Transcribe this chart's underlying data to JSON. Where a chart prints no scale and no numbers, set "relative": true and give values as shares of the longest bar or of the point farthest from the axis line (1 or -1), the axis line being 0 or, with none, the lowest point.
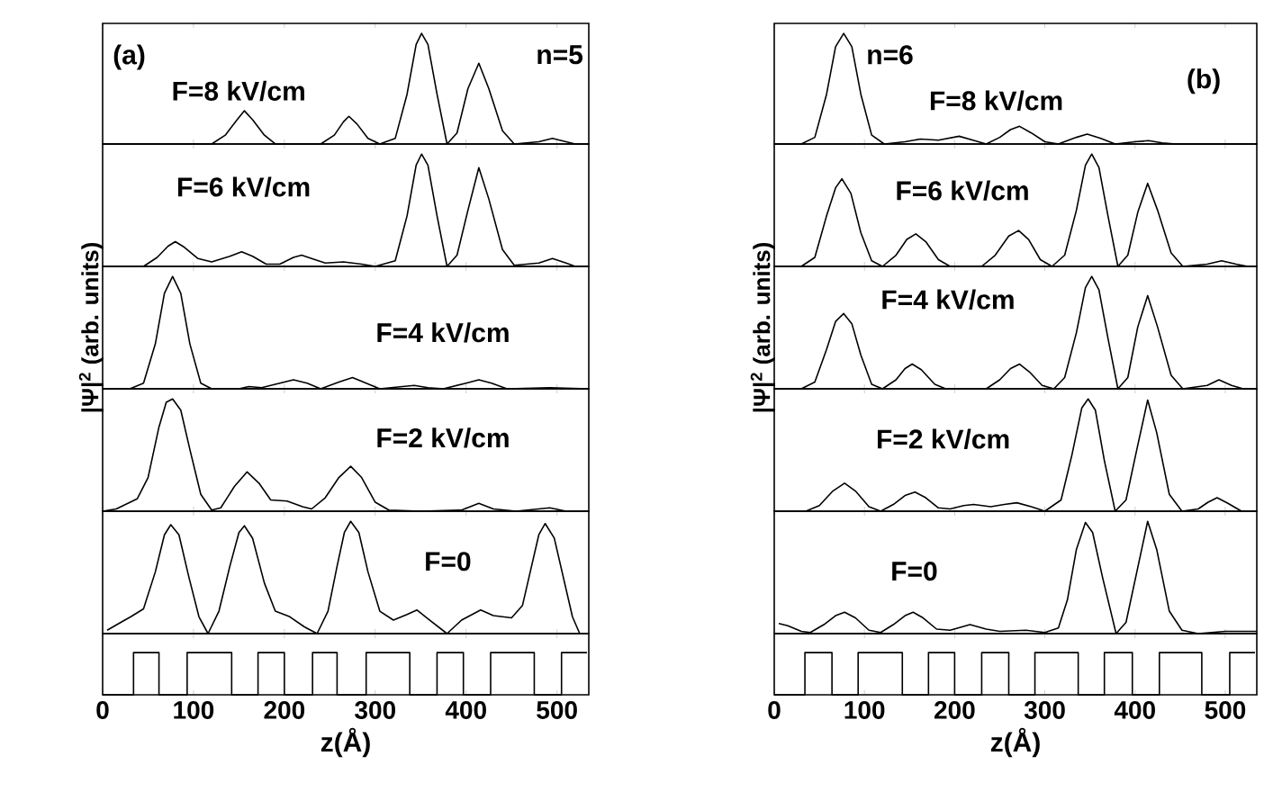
{
  "chart_data": [
    {
      "type": "line",
      "relative": true,
      "xlim": [
        0,
        535
      ],
      "xticks": [
        0,
        100,
        200,
        300,
        400,
        500
      ],
      "tick_labels": false,
      "annotations": [
        "(a)",
        "F=8 kV/cm",
        "n=5"
      ],
      "x": [
        0,
        120,
        135,
        148,
        156,
        165,
        178,
        190,
        240,
        255,
        265,
        271,
        280,
        292,
        305,
        322,
        335,
        345,
        351,
        358,
        368,
        379,
        390,
        402,
        414,
        425,
        440,
        453,
        480,
        495,
        510,
        520,
        535
      ],
      "series": [
        {
          "color": "#000000",
          "values": [
            0,
            0,
            0.08,
            0.22,
            0.3,
            0.22,
            0.08,
            0,
            0,
            0.08,
            0.2,
            0.25,
            0.18,
            0.05,
            0,
            0.05,
            0.45,
            0.9,
            1,
            0.9,
            0.45,
            0,
            0.1,
            0.5,
            0.73,
            0.5,
            0.12,
            0,
            0.02,
            0.05,
            0.02,
            0,
            0
          ]
        }
      ]
    },
    {
      "type": "line",
      "relative": true,
      "xlim": [
        0,
        535
      ],
      "xticks": [
        0,
        100,
        200,
        300,
        400,
        500
      ],
      "tick_labels": false,
      "annotations": [
        "F=6 kV/cm"
      ],
      "x": [
        0,
        45,
        60,
        72,
        80,
        90,
        105,
        120,
        140,
        153,
        165,
        180,
        195,
        210,
        219,
        230,
        245,
        265,
        285,
        300,
        322,
        335,
        345,
        351,
        358,
        368,
        379,
        390,
        402,
        414,
        425,
        440,
        453,
        480,
        495,
        510,
        520,
        535
      ],
      "series": [
        {
          "color": "#000000",
          "values": [
            0,
            0,
            0.08,
            0.18,
            0.22,
            0.17,
            0.07,
            0.04,
            0.09,
            0.13,
            0.09,
            0.02,
            0.02,
            0.08,
            0.1,
            0.07,
            0.03,
            0.04,
            0.02,
            0,
            0.05,
            0.45,
            0.9,
            1,
            0.9,
            0.45,
            0,
            0.1,
            0.5,
            0.88,
            0.6,
            0.15,
            0.01,
            0.03,
            0.07,
            0.03,
            0,
            0
          ]
        }
      ]
    },
    {
      "type": "line",
      "relative": true,
      "xlim": [
        0,
        535
      ],
      "xticks": [
        0,
        100,
        200,
        300,
        400,
        500
      ],
      "tick_labels": false,
      "annotations": [
        "F=4 kV/cm"
      ],
      "ylabel": "|Ψ|$^{2}$ (arb. units)",
      "x": [
        0,
        30,
        45,
        58,
        68,
        77,
        86,
        96,
        108,
        120,
        150,
        161,
        175,
        195,
        210,
        225,
        240,
        260,
        275,
        290,
        305,
        330,
        343,
        358,
        375,
        400,
        414,
        428,
        445,
        492,
        535
      ],
      "series": [
        {
          "color": "#000000",
          "values": [
            0,
            0,
            0.05,
            0.4,
            0.85,
            1,
            0.85,
            0.4,
            0.05,
            0,
            0,
            0.02,
            0.01,
            0.05,
            0.08,
            0.05,
            0,
            0.06,
            0.1,
            0.05,
            0,
            0.02,
            0.03,
            0.01,
            0,
            0.05,
            0.08,
            0.05,
            0,
            0.01,
            0
          ]
        }
      ]
    },
    {
      "type": "line",
      "relative": true,
      "xlim": [
        0,
        535
      ],
      "xticks": [
        0,
        100,
        200,
        300,
        400,
        500
      ],
      "tick_labels": false,
      "annotations": [
        "F=2 kV/cm"
      ],
      "x": [
        0,
        15,
        38,
        50,
        62,
        70,
        77,
        86,
        96,
        108,
        120,
        130,
        145,
        159,
        172,
        185,
        203,
        220,
        230,
        245,
        260,
        273,
        285,
        300,
        315,
        350,
        395,
        414,
        430,
        455,
        492,
        510,
        535
      ],
      "series": [
        {
          "color": "#000000",
          "values": [
            0,
            0.02,
            0.11,
            0.3,
            0.75,
            0.97,
            1,
            0.9,
            0.55,
            0.15,
            0.01,
            0.03,
            0.22,
            0.35,
            0.25,
            0.1,
            0.09,
            0.04,
            0.02,
            0.12,
            0.3,
            0.4,
            0.3,
            0.08,
            0.01,
            0,
            0.01,
            0.07,
            0.02,
            0,
            0.03,
            0,
            0
          ]
        }
      ]
    },
    {
      "type": "line",
      "relative": true,
      "xlim": [
        0,
        535
      ],
      "xticks": [
        0,
        100,
        200,
        300,
        400,
        500
      ],
      "tick_labels": false,
      "annotations": [
        "F=0"
      ],
      "x": [
        5,
        20,
        31,
        45,
        58,
        68,
        75,
        84,
        95,
        106,
        116,
        128,
        140,
        150,
        156,
        165,
        178,
        190,
        206,
        222,
        236,
        248,
        258,
        266,
        273,
        282,
        292,
        305,
        320,
        335,
        346,
        360,
        379,
        395,
        416,
        430,
        450,
        462,
        472,
        480,
        487,
        497,
        507,
        517,
        525
      ],
      "series": [
        {
          "color": "#000000",
          "values": [
            0.03,
            0.1,
            0.15,
            0.22,
            0.55,
            0.88,
            0.97,
            0.88,
            0.5,
            0.15,
            0,
            0.2,
            0.6,
            0.9,
            0.96,
            0.85,
            0.45,
            0.2,
            0.15,
            0.06,
            0,
            0.2,
            0.6,
            0.9,
            1,
            0.9,
            0.55,
            0.2,
            0.12,
            0.17,
            0.21,
            0.12,
            0,
            0.12,
            0.21,
            0.16,
            0.14,
            0.25,
            0.6,
            0.88,
            0.98,
            0.85,
            0.5,
            0.15,
            0
          ]
        }
      ]
    },
    {
      "type": "line",
      "relative": true,
      "xlim": [
        0,
        535
      ],
      "xticks": [
        0,
        100,
        200,
        300,
        400,
        500
      ],
      "tick_labels": "x",
      "xlabel": "z(Å)",
      "x": [
        0,
        34,
        34,
        62,
        62,
        93,
        93,
        142,
        142,
        171,
        171,
        200,
        200,
        231,
        231,
        258,
        258,
        290,
        290,
        338,
        338,
        368,
        368,
        397,
        397,
        427,
        427,
        475,
        475,
        505,
        505,
        533
      ],
      "series": [
        {
          "color": "#000000",
          "values": [
            0,
            0,
            1,
            1,
            0,
            0,
            1,
            1,
            0,
            0,
            1,
            1,
            0,
            0,
            1,
            1,
            0,
            0,
            1,
            1,
            0,
            0,
            1,
            1,
            0,
            0,
            1,
            1,
            0,
            0,
            1,
            1
          ]
        }
      ]
    },
    {
      "type": "line",
      "relative": true,
      "xlim": [
        0,
        535
      ],
      "xticks": [
        0,
        100,
        200,
        300,
        400,
        500
      ],
      "tick_labels": false,
      "annotations": [
        "n=6",
        "F=8 kV/cm",
        "(b)"
      ],
      "x": [
        0,
        30,
        45,
        58,
        68,
        77,
        86,
        96,
        108,
        122,
        145,
        162,
        182,
        205,
        222,
        235,
        250,
        262,
        272,
        285,
        300,
        315,
        335,
        347,
        362,
        378,
        400,
        415,
        430,
        445,
        535
      ],
      "series": [
        {
          "color": "#000000",
          "values": [
            0,
            0,
            0.06,
            0.45,
            0.88,
            1,
            0.88,
            0.45,
            0.08,
            0,
            0.02,
            0.045,
            0.035,
            0.07,
            0.03,
            0,
            0.06,
            0.13,
            0.16,
            0.1,
            0.02,
            0,
            0.06,
            0.09,
            0.05,
            0,
            0.02,
            0.03,
            0.01,
            0,
            0
          ]
        }
      ]
    },
    {
      "type": "line",
      "relative": true,
      "xlim": [
        0,
        535
      ],
      "xticks": [
        0,
        100,
        200,
        300,
        400,
        500
      ],
      "tick_labels": false,
      "annotations": [
        "F=6 kV/cm"
      ],
      "x": [
        0,
        30,
        45,
        58,
        68,
        75,
        85,
        96,
        108,
        120,
        135,
        147,
        157,
        168,
        182,
        195,
        230,
        245,
        260,
        271,
        282,
        295,
        308,
        322,
        335,
        345,
        352,
        360,
        370,
        381,
        392,
        403,
        414,
        425,
        440,
        453,
        480,
        496,
        512,
        525,
        535
      ],
      "series": [
        {
          "color": "#000000",
          "values": [
            0,
            0,
            0.08,
            0.45,
            0.7,
            0.78,
            0.65,
            0.3,
            0.05,
            0,
            0.1,
            0.24,
            0.29,
            0.22,
            0.06,
            0,
            0,
            0.1,
            0.27,
            0.32,
            0.24,
            0.06,
            0,
            0.1,
            0.5,
            0.9,
            1,
            0.88,
            0.45,
            0,
            0.1,
            0.48,
            0.74,
            0.5,
            0.12,
            0,
            0.02,
            0.05,
            0.02,
            0,
            0
          ]
        }
      ]
    },
    {
      "type": "line",
      "relative": true,
      "xlim": [
        0,
        535
      ],
      "xticks": [
        0,
        100,
        200,
        300,
        400,
        500
      ],
      "tick_labels": false,
      "annotations": [
        "F=4 kV/cm"
      ],
      "ylabel": "|Ψ|$^{2}$ (arb. units)",
      "x": [
        0,
        30,
        45,
        58,
        68,
        77,
        86,
        96,
        108,
        120,
        135,
        145,
        153,
        163,
        178,
        190,
        235,
        250,
        262,
        272,
        283,
        297,
        310,
        322,
        335,
        345,
        352,
        360,
        370,
        381,
        392,
        403,
        414,
        425,
        440,
        453,
        480,
        493,
        507,
        520,
        535
      ],
      "series": [
        {
          "color": "#000000",
          "values": [
            0,
            0,
            0.06,
            0.35,
            0.6,
            0.67,
            0.58,
            0.3,
            0.04,
            0,
            0.08,
            0.18,
            0.22,
            0.17,
            0.04,
            0,
            0,
            0.08,
            0.18,
            0.22,
            0.15,
            0.03,
            0,
            0.1,
            0.5,
            0.9,
            1,
            0.88,
            0.45,
            0,
            0.1,
            0.55,
            0.83,
            0.55,
            0.12,
            0,
            0.03,
            0.08,
            0.03,
            0,
            0
          ]
        }
      ]
    },
    {
      "type": "line",
      "relative": true,
      "xlim": [
        0,
        535
      ],
      "xticks": [
        0,
        100,
        200,
        300,
        400,
        500
      ],
      "tick_labels": false,
      "annotations": [
        "F=2 kV/cm"
      ],
      "x": [
        0,
        35,
        50,
        65,
        78,
        90,
        105,
        118,
        132,
        145,
        156,
        168,
        182,
        195,
        210,
        221,
        240,
        255,
        269,
        285,
        300,
        318,
        330,
        341,
        348,
        356,
        366,
        378,
        390,
        402,
        414,
        424,
        438,
        452,
        470,
        481,
        491,
        503,
        518,
        535
      ],
      "series": [
        {
          "color": "#000000",
          "values": [
            0,
            0,
            0.05,
            0.18,
            0.25,
            0.18,
            0.04,
            0,
            0.06,
            0.14,
            0.17,
            0.12,
            0.03,
            0.02,
            0.05,
            0.06,
            0.04,
            0.06,
            0.075,
            0.04,
            0,
            0.1,
            0.5,
            0.92,
            1,
            0.9,
            0.45,
            0,
            0.1,
            0.55,
            0.99,
            0.7,
            0.15,
            0,
            0.02,
            0.08,
            0.12,
            0.07,
            0,
            0
          ]
        }
      ]
    },
    {
      "type": "line",
      "relative": true,
      "xlim": [
        0,
        535
      ],
      "xticks": [
        0,
        100,
        200,
        300,
        400,
        500
      ],
      "tick_labels": false,
      "annotations": [
        "F=0"
      ],
      "x": [
        5,
        15,
        30,
        40,
        55,
        68,
        78,
        90,
        105,
        118,
        132,
        145,
        154,
        165,
        180,
        195,
        217,
        235,
        250,
        279,
        300,
        315,
        325,
        335,
        345,
        353,
        364,
        379,
        390,
        402,
        414,
        424,
        438,
        452,
        470,
        500,
        535
      ],
      "series": [
        {
          "color": "#000000",
          "values": [
            0.09,
            0.07,
            0.02,
            0.01,
            0.08,
            0.16,
            0.19,
            0.14,
            0.03,
            0.01,
            0.08,
            0.16,
            0.19,
            0.14,
            0.04,
            0.03,
            0.08,
            0.04,
            0.02,
            0.03,
            0.01,
            0.05,
            0.3,
            0.75,
            0.99,
            0.9,
            0.5,
            0,
            0.1,
            0.55,
            1,
            0.75,
            0.2,
            0.03,
            0,
            0.02,
            0.02
          ]
        }
      ]
    },
    {
      "type": "line",
      "relative": true,
      "xlim": [
        0,
        535
      ],
      "xticks": [
        0,
        100,
        200,
        300,
        400,
        500
      ],
      "tick_labels": "x",
      "xlabel": "z(Å)",
      "x": [
        0,
        34,
        34,
        64,
        64,
        93,
        93,
        142,
        142,
        171,
        171,
        200,
        200,
        230,
        230,
        260,
        260,
        289,
        289,
        337,
        337,
        366,
        366,
        397,
        397,
        427,
        427,
        474,
        474,
        505,
        505,
        533
      ],
      "series": [
        {
          "color": "#000000",
          "values": [
            0,
            0,
            1,
            1,
            0,
            0,
            1,
            1,
            0,
            0,
            1,
            1,
            0,
            0,
            1,
            1,
            0,
            0,
            1,
            1,
            0,
            0,
            1,
            1,
            0,
            0,
            1,
            1,
            0,
            0,
            1,
            1
          ]
        }
      ]
    }
  ]
}
